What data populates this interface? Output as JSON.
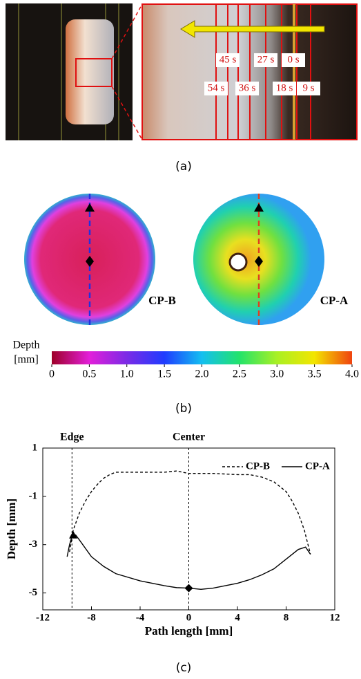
{
  "captions": [
    "(a)",
    "(b)",
    "(c)"
  ],
  "panel_a": {
    "time_labels": [
      "45 s",
      "27 s",
      "0 s",
      "54 s",
      "36 s",
      "18 s",
      "9 s"
    ]
  },
  "panel_b": {
    "labels": [
      "CP-B",
      "CP-A"
    ],
    "colorbar": {
      "label": [
        "Depth",
        "[mm]"
      ],
      "lim": [
        0,
        4
      ],
      "ticks": [
        0,
        0.5,
        {
          "value": 1,
          "label": "1.0"
        },
        1.5,
        {
          "value": 2,
          "label": "2.0"
        },
        2.5,
        {
          "value": 3,
          "label": "3.0"
        },
        3.5,
        {
          "value": 4,
          "label": "4.0"
        }
      ],
      "colors": [
        "#9e0028",
        "#e21fd9",
        "#7b2be6",
        "#1f3cff",
        "#13bff0",
        "#22e36a",
        "#a9f024",
        "#f3e500",
        "#f0420f"
      ]
    }
  },
  "chart_data": {
    "type": "line",
    "xlabel": "Path length [mm]",
    "ylabel": "Depth [mm]",
    "xlim": [
      -12,
      12
    ],
    "ylim": [
      -5.7,
      1
    ],
    "xticks": [
      -12,
      -8,
      -4,
      0,
      4,
      8,
      12
    ],
    "yticks": [
      1,
      -1,
      -3,
      -5
    ],
    "vlines": [
      {
        "x": -9.6,
        "label": "Edge"
      },
      {
        "x": 0,
        "label": "Center"
      }
    ],
    "series": [
      {
        "name": "CP-B",
        "color": "#000000",
        "style": "dashed",
        "x": [
          -9.8,
          -9.5,
          -9,
          -8.5,
          -8,
          -7.5,
          -7,
          -6.5,
          -6,
          -4,
          -2,
          -1,
          0,
          2,
          4,
          5,
          6,
          7,
          8,
          8.5,
          9,
          9.5,
          9.8,
          10
        ],
        "values": [
          -3.3,
          -2.4,
          -1.7,
          -1.2,
          -0.8,
          -0.5,
          -0.25,
          -0.1,
          0,
          0,
          0,
          0.05,
          -0.05,
          -0.05,
          -0.1,
          -0.1,
          -0.2,
          -0.4,
          -0.8,
          -1.2,
          -1.7,
          -2.4,
          -3.0,
          -3.4
        ]
      },
      {
        "name": "CP-A",
        "color": "#000000",
        "style": "solid",
        "x": [
          -10,
          -9.8,
          -9.6,
          -9.3,
          -9,
          -8,
          -7,
          -6,
          -4,
          -2,
          -1,
          0,
          1,
          2,
          3,
          4,
          5,
          6,
          7,
          8,
          9,
          9.6,
          10
        ],
        "values": [
          -3.5,
          -3.0,
          -2.65,
          -2.6,
          -2.8,
          -3.5,
          -3.9,
          -4.2,
          -4.5,
          -4.7,
          -4.78,
          -4.8,
          -4.85,
          -4.8,
          -4.7,
          -4.6,
          -4.45,
          -4.25,
          -4.0,
          -3.6,
          -3.2,
          -3.1,
          -3.4
        ]
      }
    ],
    "markers": [
      {
        "shape": "triangle",
        "x": -9.5,
        "y": -2.6
      },
      {
        "shape": "diamond",
        "x": 0,
        "y": -4.8
      }
    ]
  }
}
